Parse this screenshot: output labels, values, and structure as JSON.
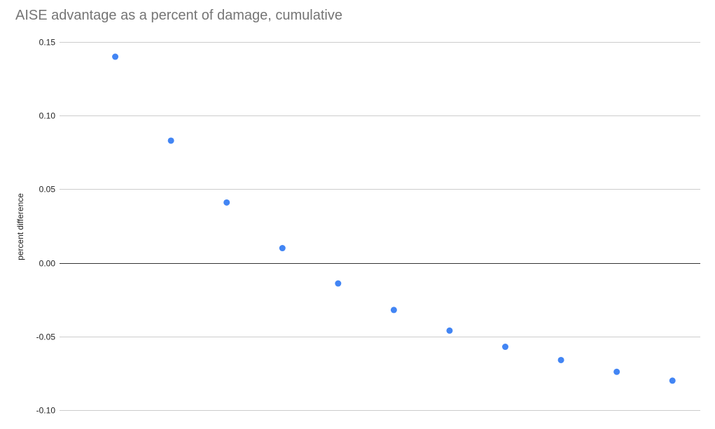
{
  "chart_data": {
    "type": "scatter",
    "title": "AISE advantage as a percent of damage, cumulative",
    "xlabel": "",
    "ylabel": "percent difference",
    "x": [
      1,
      2,
      3,
      4,
      5,
      6,
      7,
      8,
      9,
      10,
      11
    ],
    "series": [
      {
        "values": [
          0.14,
          0.083,
          0.041,
          0.01,
          -0.014,
          -0.032,
          -0.046,
          -0.057,
          -0.066,
          -0.074,
          -0.08
        ],
        "color": "#4285f4"
      }
    ],
    "xlim": [
      0,
      11.5
    ],
    "ylim": [
      -0.1,
      0.15
    ],
    "yticks": [
      "0.15",
      "0.10",
      "0.05",
      "0.00",
      "-0.05",
      "-0.10"
    ],
    "ytick_values": [
      0.15,
      0.1,
      0.05,
      0.0,
      -0.05,
      -0.1
    ],
    "grid": true,
    "zero_line_color": "#333333",
    "grid_color": "#cccccc"
  }
}
